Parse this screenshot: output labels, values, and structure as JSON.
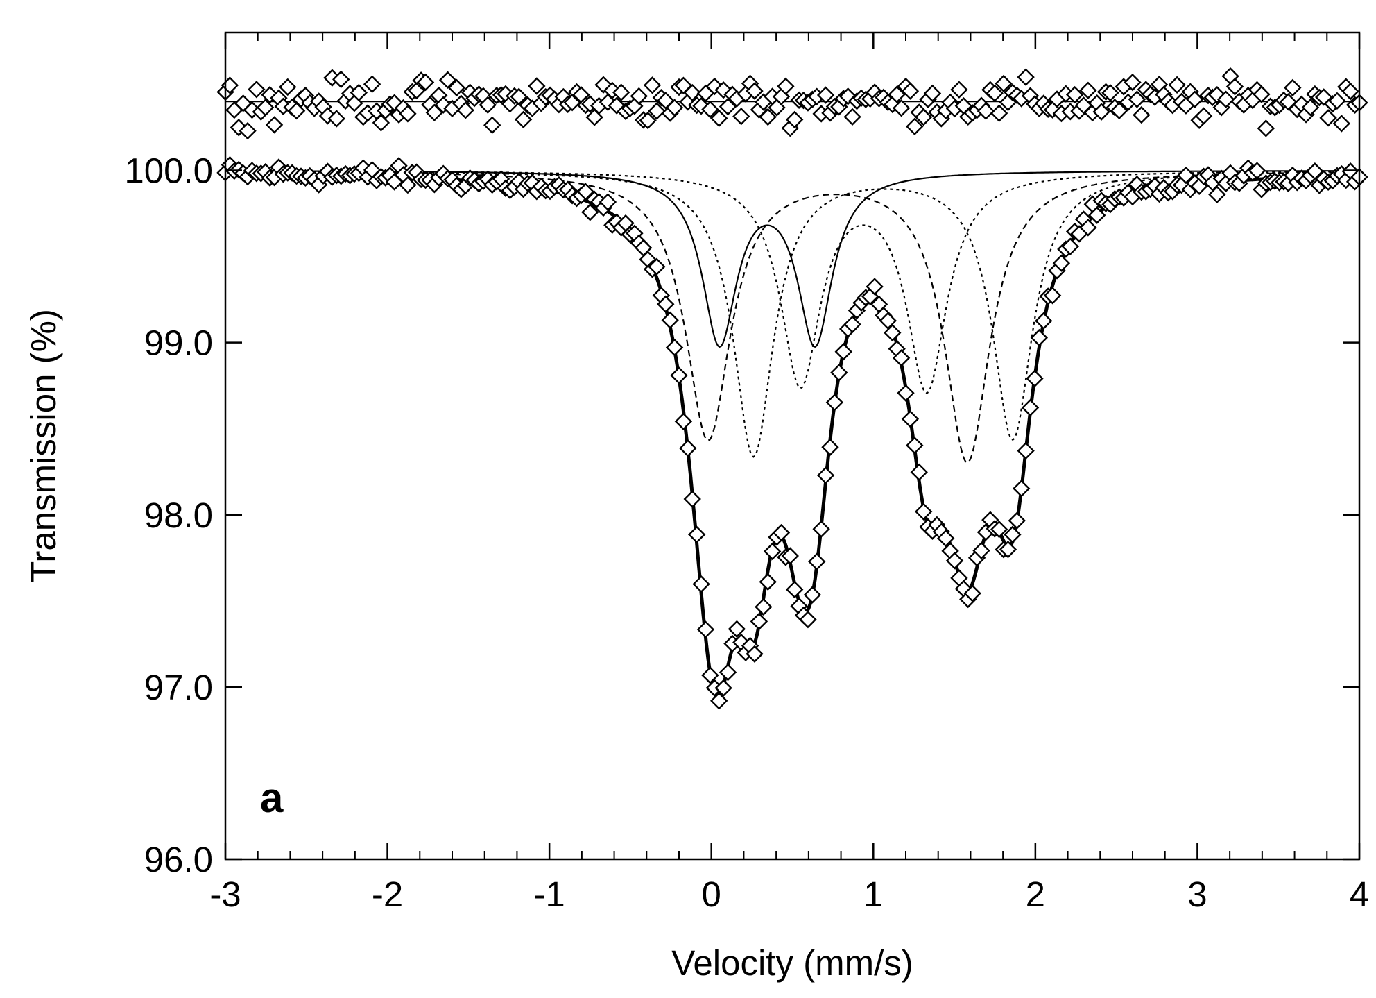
{
  "chart_data": {
    "type": "scatter",
    "title": "",
    "panel_label": "a",
    "xlabel": "Velocity (mm/s)",
    "ylabel": "Transmission (%)",
    "xlim": [
      -3,
      4
    ],
    "ylim": [
      96.0,
      100.8
    ],
    "x_ticks": [
      -3,
      -2,
      -1,
      0,
      1,
      2,
      3,
      4
    ],
    "x_tick_labels": [
      "-3",
      "-2",
      "-1",
      "0",
      "1",
      "2",
      "3",
      "4"
    ],
    "y_ticks": [
      96.0,
      97.0,
      98.0,
      99.0,
      100.0
    ],
    "y_tick_labels": [
      "96.0",
      "97.0",
      "98.0",
      "99.0",
      "100.0"
    ],
    "residual_baseline": 100.4,
    "fit_baseline": 100.0,
    "components": [
      {
        "name": "doublet-solid",
        "style": "solid",
        "peaks": [
          {
            "center": 0.05,
            "depth": 0.98,
            "hwhm": 0.13
          },
          {
            "center": 0.64,
            "depth": 0.98,
            "hwhm": 0.13
          }
        ]
      },
      {
        "name": "doublet-dashed",
        "style": "dashed",
        "peaks": [
          {
            "center": -0.02,
            "depth": 1.55,
            "hwhm": 0.17
          },
          {
            "center": 1.58,
            "depth": 1.68,
            "hwhm": 0.17
          }
        ]
      },
      {
        "name": "doublet-dotted-a",
        "style": "dotted",
        "peaks": [
          {
            "center": 0.26,
            "depth": 1.65,
            "hwhm": 0.15
          },
          {
            "center": 1.86,
            "depth": 1.55,
            "hwhm": 0.15
          }
        ]
      },
      {
        "name": "doublet-dotted-b",
        "style": "dotted",
        "peaks": [
          {
            "center": 0.55,
            "depth": 1.22,
            "hwhm": 0.15
          },
          {
            "center": 1.33,
            "depth": 1.25,
            "hwhm": 0.15
          }
        ]
      }
    ],
    "series": [
      {
        "name": "measured-spectrum",
        "marker": "diamond",
        "line": "none",
        "source": "sum of components plus scatter"
      },
      {
        "name": "total-fit",
        "marker": "none",
        "line": "thick-solid"
      },
      {
        "name": "residuals",
        "marker": "diamond",
        "line": "none",
        "offset": 100.4
      }
    ]
  }
}
